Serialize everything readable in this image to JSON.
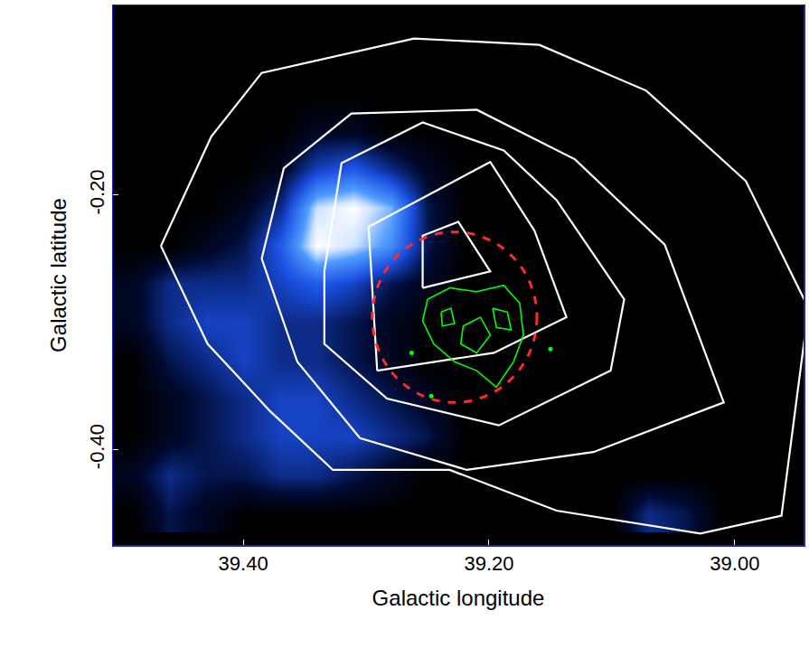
{
  "chart_data": {
    "type": "heatmap",
    "xlabel": "Galactic longitude",
    "ylabel": "Galactic latitude",
    "xlim": [
      39.506,
      38.944
    ],
    "ylim": [
      -0.475,
      -0.051
    ],
    "xticks": [
      {
        "value": 39.4,
        "label": "39.40"
      },
      {
        "value": 39.2,
        "label": "39.20"
      },
      {
        "value": 39.0,
        "label": "39.00"
      }
    ],
    "yticks": [
      {
        "value": -0.2,
        "label": "-0.20"
      },
      {
        "value": -0.4,
        "label": "-0.40"
      }
    ],
    "grid": false,
    "x": [
      39.49,
      39.46,
      39.43,
      39.4,
      39.37,
      39.34,
      39.31,
      39.28,
      39.25,
      39.22,
      39.19,
      39.16,
      39.13,
      39.1,
      39.07,
      39.04,
      39.01,
      38.98,
      38.95
    ],
    "y": [
      -0.06,
      -0.09,
      -0.12,
      -0.15,
      -0.18,
      -0.21,
      -0.24,
      -0.27,
      -0.3,
      -0.33,
      -0.36,
      -0.39,
      -0.42,
      -0.45
    ],
    "cells": [
      [
        0,
        0,
        0,
        0,
        0,
        0,
        0,
        0,
        0,
        0,
        0,
        0,
        0,
        0,
        0,
        0,
        0,
        0,
        0
      ],
      [
        0,
        0,
        0,
        0,
        0,
        0,
        0,
        0,
        0,
        0,
        0,
        0,
        0,
        0,
        0,
        0,
        0,
        0,
        0
      ],
      [
        0,
        0,
        0,
        0,
        0,
        0,
        0,
        0,
        0,
        0,
        0,
        0,
        0,
        0,
        0,
        0,
        0,
        0,
        0
      ],
      [
        0,
        0,
        0,
        0,
        0,
        1,
        1,
        0,
        0,
        0,
        0,
        0,
        0,
        0,
        0,
        0,
        0,
        0,
        0
      ],
      [
        0,
        0,
        0,
        0,
        1,
        4,
        5,
        3,
        1,
        0,
        0,
        0,
        0,
        0,
        0,
        0,
        0,
        0,
        0
      ],
      [
        0,
        0,
        0,
        1,
        3,
        9,
        10,
        8,
        2,
        0,
        0,
        0,
        0,
        0,
        0,
        0,
        0,
        0,
        0
      ],
      [
        0,
        0,
        1,
        2,
        5,
        10,
        9,
        7,
        2,
        0,
        0,
        0,
        0,
        0,
        0,
        0,
        0,
        0,
        0
      ],
      [
        1,
        3,
        3,
        3,
        4,
        5,
        4,
        2,
        1,
        0,
        0,
        0,
        0,
        0,
        0,
        0,
        0,
        0,
        0
      ],
      [
        1,
        3,
        4,
        4,
        3,
        3,
        2,
        1,
        0,
        0,
        0,
        0,
        0,
        0,
        0,
        0,
        0,
        0,
        0
      ],
      [
        0,
        2,
        3,
        4,
        3,
        3,
        2,
        1,
        0,
        0,
        0,
        0,
        0,
        0,
        0,
        0,
        0,
        0,
        0
      ],
      [
        0,
        1,
        2,
        3,
        4,
        4,
        3,
        2,
        1,
        0,
        0,
        0,
        0,
        0,
        0,
        0,
        0,
        0,
        0
      ],
      [
        0,
        1,
        2,
        3,
        4,
        4,
        4,
        3,
        2,
        0,
        0,
        0,
        0,
        0,
        0,
        0,
        0,
        0,
        0
      ],
      [
        1,
        3,
        2,
        2,
        3,
        3,
        2,
        1,
        0,
        0,
        0,
        0,
        0,
        0,
        0,
        0,
        0,
        0,
        0
      ],
      [
        0,
        2,
        1,
        0,
        0,
        0,
        0,
        0,
        0,
        0,
        0,
        0,
        0,
        0,
        3,
        2,
        0,
        0,
        0
      ]
    ],
    "zlim": [
      0,
      10
    ],
    "series": [
      {
        "type": "line",
        "color": "#ffffff",
        "line_style": "solid",
        "x": [
          39.467,
          39.426,
          39.385,
          39.261,
          39.159,
          39.072,
          38.991,
          38.94,
          38.962,
          39.028,
          39.145,
          39.232,
          39.327,
          39.378,
          39.429,
          39.467
        ],
        "y": [
          -0.24,
          -0.154,
          -0.104,
          -0.077,
          -0.082,
          -0.118,
          -0.189,
          -0.289,
          -0.452,
          -0.466,
          -0.448,
          -0.416,
          -0.416,
          -0.37,
          -0.317,
          -0.24
        ]
      },
      {
        "type": "line",
        "color": "#ffffff",
        "line_style": "solid",
        "x": [
          39.385,
          39.367,
          39.312,
          39.21,
          39.13,
          39.057,
          39.009,
          39.115,
          39.218,
          39.305,
          39.356,
          39.385
        ],
        "y": [
          -0.25,
          -0.179,
          -0.136,
          -0.133,
          -0.172,
          -0.239,
          -0.363,
          -0.402,
          -0.416,
          -0.391,
          -0.331,
          -0.25
        ]
      },
      {
        "type": "line",
        "color": "#ffffff",
        "line_style": "solid",
        "x": [
          39.334,
          39.32,
          39.254,
          39.188,
          39.145,
          39.09,
          39.101,
          39.192,
          39.283,
          39.334,
          39.334
        ],
        "y": [
          -0.26,
          -0.175,
          -0.143,
          -0.165,
          -0.204,
          -0.282,
          -0.338,
          -0.381,
          -0.36,
          -0.317,
          -0.26
        ]
      },
      {
        "type": "line",
        "color": "#ffffff",
        "line_style": "solid",
        "x": [
          39.291,
          39.298,
          39.199,
          39.163,
          39.137,
          39.196,
          39.291
        ],
        "y": [
          -0.338,
          -0.225,
          -0.174,
          -0.228,
          -0.296,
          -0.324,
          -0.338
        ]
      },
      {
        "type": "line",
        "color": "#ffffff",
        "line_style": "solid",
        "x": [
          39.254,
          39.254,
          39.225,
          39.199,
          39.254
        ],
        "y": [
          -0.273,
          -0.232,
          -0.221,
          -0.26,
          -0.273
        ]
      },
      {
        "type": "line",
        "color": "#00ff00",
        "line_style": "solid",
        "x": [
          39.25,
          39.232,
          39.21,
          39.188,
          39.175,
          39.172,
          39.18,
          39.194,
          39.21,
          39.228,
          39.245,
          39.254,
          39.25
        ],
        "y": [
          -0.282,
          -0.273,
          -0.276,
          -0.271,
          -0.285,
          -0.31,
          -0.331,
          -0.351,
          -0.338,
          -0.331,
          -0.317,
          -0.299,
          -0.282
        ]
      },
      {
        "type": "line",
        "color": "#00ff00",
        "line_style": "solid",
        "x": [
          39.221,
          39.207,
          39.199,
          39.21,
          39.223,
          39.221
        ],
        "y": [
          -0.303,
          -0.296,
          -0.31,
          -0.324,
          -0.317,
          -0.303
        ]
      },
      {
        "type": "line",
        "color": "#00ff00",
        "line_style": "solid",
        "x": [
          39.197,
          39.185,
          39.182,
          39.194,
          39.197
        ],
        "y": [
          -0.289,
          -0.292,
          -0.306,
          -0.304,
          -0.289
        ]
      },
      {
        "type": "line",
        "color": "#00ff00",
        "line_style": "solid",
        "x": [
          39.239,
          39.231,
          39.228,
          39.238,
          39.239
        ],
        "y": [
          -0.292,
          -0.289,
          -0.301,
          -0.303,
          -0.292
        ]
      },
      {
        "type": "scatter",
        "color": "#00ff00",
        "marker": "circle",
        "x": [
          39.263,
          39.15,
          39.247
        ],
        "y": [
          -0.324,
          -0.321,
          -0.358
        ]
      }
    ],
    "circle": {
      "x": 39.228,
      "y": -0.296,
      "radius": 0.067,
      "color": "#ff2a2a",
      "line_style": "dash"
    }
  }
}
